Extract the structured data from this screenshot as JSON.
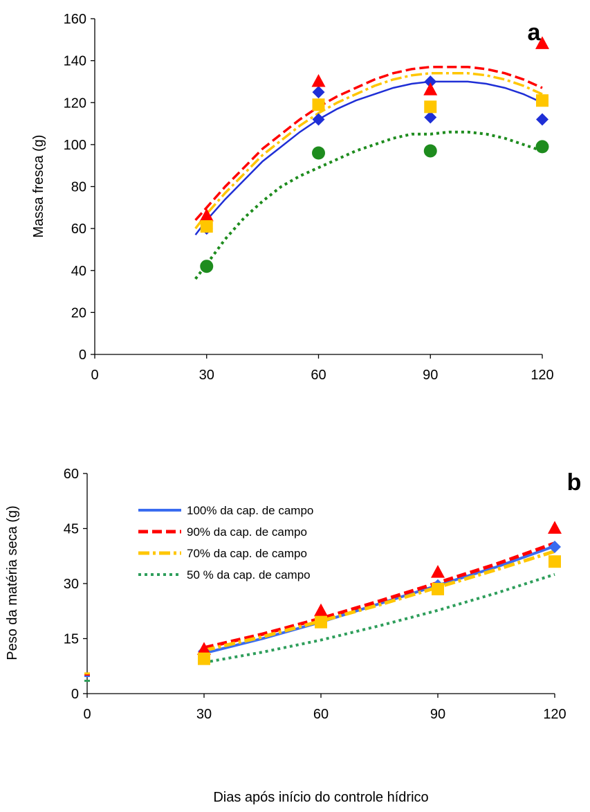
{
  "chart_data": [
    {
      "type": "scatter",
      "panel_label": "a",
      "xlabel": "",
      "ylabel": "Massa fresca (g)",
      "xlim": [
        0,
        120
      ],
      "ylim": [
        0,
        160
      ],
      "xticks": [
        "0",
        "30",
        "60",
        "90",
        "120"
      ],
      "yticks": [
        "0",
        "20",
        "40",
        "60",
        "80",
        "100",
        "120",
        "140",
        "160"
      ],
      "grid": false,
      "series": [
        {
          "color": "#1f2fd6",
          "marker": "diamond",
          "line": "solid",
          "points": [
            [
              30,
              60
            ],
            [
              30,
              64
            ],
            [
              60,
              125
            ],
            [
              60,
              112
            ],
            [
              90,
              130
            ],
            [
              90,
              113
            ],
            [
              120,
              112
            ]
          ],
          "trend": [
            [
              27,
              57
            ],
            [
              30,
              64
            ],
            [
              35,
              74
            ],
            [
              40,
              83
            ],
            [
              45,
              92
            ],
            [
              50,
              99
            ],
            [
              55,
              106
            ],
            [
              60,
              112
            ],
            [
              65,
              117
            ],
            [
              70,
              121
            ],
            [
              75,
              124
            ],
            [
              80,
              127
            ],
            [
              85,
              129
            ],
            [
              90,
              130
            ],
            [
              95,
              130
            ],
            [
              100,
              130
            ],
            [
              105,
              129
            ],
            [
              110,
              127
            ],
            [
              115,
              124
            ],
            [
              120,
              120
            ]
          ]
        },
        {
          "color": "#ff0000",
          "marker": "triangle",
          "line": "dashed",
          "points": [
            [
              30,
              66
            ],
            [
              60,
              130
            ],
            [
              90,
              126
            ],
            [
              120,
              148
            ]
          ],
          "trend": [
            [
              27,
              64
            ],
            [
              30,
              70
            ],
            [
              35,
              80
            ],
            [
              40,
              89
            ],
            [
              45,
              98
            ],
            [
              50,
              105
            ],
            [
              55,
              112
            ],
            [
              60,
              118
            ],
            [
              65,
              123
            ],
            [
              70,
              127
            ],
            [
              75,
              131
            ],
            [
              80,
              134
            ],
            [
              85,
              136
            ],
            [
              90,
              137
            ],
            [
              95,
              137
            ],
            [
              100,
              137
            ],
            [
              105,
              136
            ],
            [
              110,
              134
            ],
            [
              115,
              131
            ],
            [
              120,
              127
            ]
          ]
        },
        {
          "color": "#ffc600",
          "marker": "square",
          "line": "dashdot",
          "points": [
            [
              30,
              61
            ],
            [
              60,
              119
            ],
            [
              90,
              118
            ],
            [
              120,
              121
            ]
          ],
          "trend": [
            [
              27,
              60
            ],
            [
              30,
              67
            ],
            [
              35,
              77
            ],
            [
              40,
              86
            ],
            [
              45,
              95
            ],
            [
              50,
              102
            ],
            [
              55,
              109
            ],
            [
              60,
              115
            ],
            [
              65,
              120
            ],
            [
              70,
              124
            ],
            [
              75,
              128
            ],
            [
              80,
              131
            ],
            [
              85,
              133
            ],
            [
              90,
              134
            ],
            [
              95,
              134
            ],
            [
              100,
              134
            ],
            [
              105,
              133
            ],
            [
              110,
              131
            ],
            [
              115,
              128
            ],
            [
              120,
              124
            ]
          ]
        },
        {
          "color": "#1e8c1e",
          "marker": "circle",
          "line": "dotted",
          "points": [
            [
              30,
              42
            ],
            [
              60,
              96
            ],
            [
              90,
              97
            ],
            [
              120,
              99
            ]
          ],
          "trend": [
            [
              27,
              36
            ],
            [
              30,
              43
            ],
            [
              35,
              55
            ],
            [
              40,
              65
            ],
            [
              45,
              73
            ],
            [
              50,
              80
            ],
            [
              55,
              85
            ],
            [
              60,
              89
            ],
            [
              65,
              93
            ],
            [
              70,
              97
            ],
            [
              75,
              100
            ],
            [
              80,
              103
            ],
            [
              85,
              105
            ],
            [
              90,
              105
            ],
            [
              95,
              106
            ],
            [
              100,
              106
            ],
            [
              105,
              105
            ],
            [
              110,
              103
            ],
            [
              115,
              100
            ],
            [
              120,
              97
            ]
          ]
        }
      ]
    },
    {
      "type": "scatter",
      "panel_label": "b",
      "xlabel": "Dias após início do controle hídrico",
      "ylabel": "Peso da matéria seca (g)",
      "xlim": [
        0,
        120
      ],
      "ylim": [
        0,
        60
      ],
      "xticks": [
        "0",
        "30",
        "60",
        "90",
        "120"
      ],
      "yticks": [
        "0",
        "15",
        "30",
        "45",
        "60"
      ],
      "grid": false,
      "legend": {
        "placement": "top-left"
      },
      "series": [
        {
          "name": "100% da cap. de campo",
          "color": "#3a6cf0",
          "marker": "diamond",
          "line": "solid",
          "points": [
            [
              0,
              4.8
            ],
            [
              30,
              11.5
            ],
            [
              60,
              20
            ],
            [
              90,
              29.5
            ],
            [
              120,
              40
            ]
          ],
          "trend": [
            [
              30,
              11
            ],
            [
              45,
              15
            ],
            [
              60,
              19.5
            ],
            [
              75,
              24.5
            ],
            [
              90,
              29.5
            ],
            [
              105,
              34.5
            ],
            [
              120,
              40.2
            ]
          ]
        },
        {
          "name": "90% da cap. de campo",
          "color": "#ff0000",
          "marker": "triangle",
          "line": "dashed",
          "points": [
            [
              0,
              5.2
            ],
            [
              30,
              12
            ],
            [
              60,
              22.5
            ],
            [
              90,
              33
            ],
            [
              120,
              45
            ]
          ],
          "trend": [
            [
              30,
              12.5
            ],
            [
              45,
              16.2
            ],
            [
              60,
              20.5
            ],
            [
              75,
              25.2
            ],
            [
              90,
              30.2
            ],
            [
              105,
              35.3
            ],
            [
              120,
              41
            ]
          ]
        },
        {
          "name": "70% da cap. de campo",
          "color": "#ffc600",
          "marker": "square",
          "line": "dashdot",
          "points": [
            [
              0,
              5.5
            ],
            [
              30,
              9.5
            ],
            [
              60,
              19.5
            ],
            [
              90,
              28.5
            ],
            [
              120,
              36
            ]
          ],
          "trend": [
            [
              30,
              11.8
            ],
            [
              45,
              15.5
            ],
            [
              60,
              19.8
            ],
            [
              75,
              24.2
            ],
            [
              90,
              29
            ],
            [
              105,
              33.8
            ],
            [
              120,
              38.8
            ]
          ]
        },
        {
          "name": "50 % da cap. de campo",
          "color": "#2e9e5b",
          "marker": "circle",
          "line": "dotted",
          "points": [
            [
              0,
              3.5
            ]
          ],
          "trend": [
            [
              30,
              8.5
            ],
            [
              45,
              11.3
            ],
            [
              60,
              14.6
            ],
            [
              75,
              18.5
            ],
            [
              90,
              22.7
            ],
            [
              105,
              27.4
            ],
            [
              120,
              32.5
            ]
          ]
        }
      ]
    }
  ]
}
